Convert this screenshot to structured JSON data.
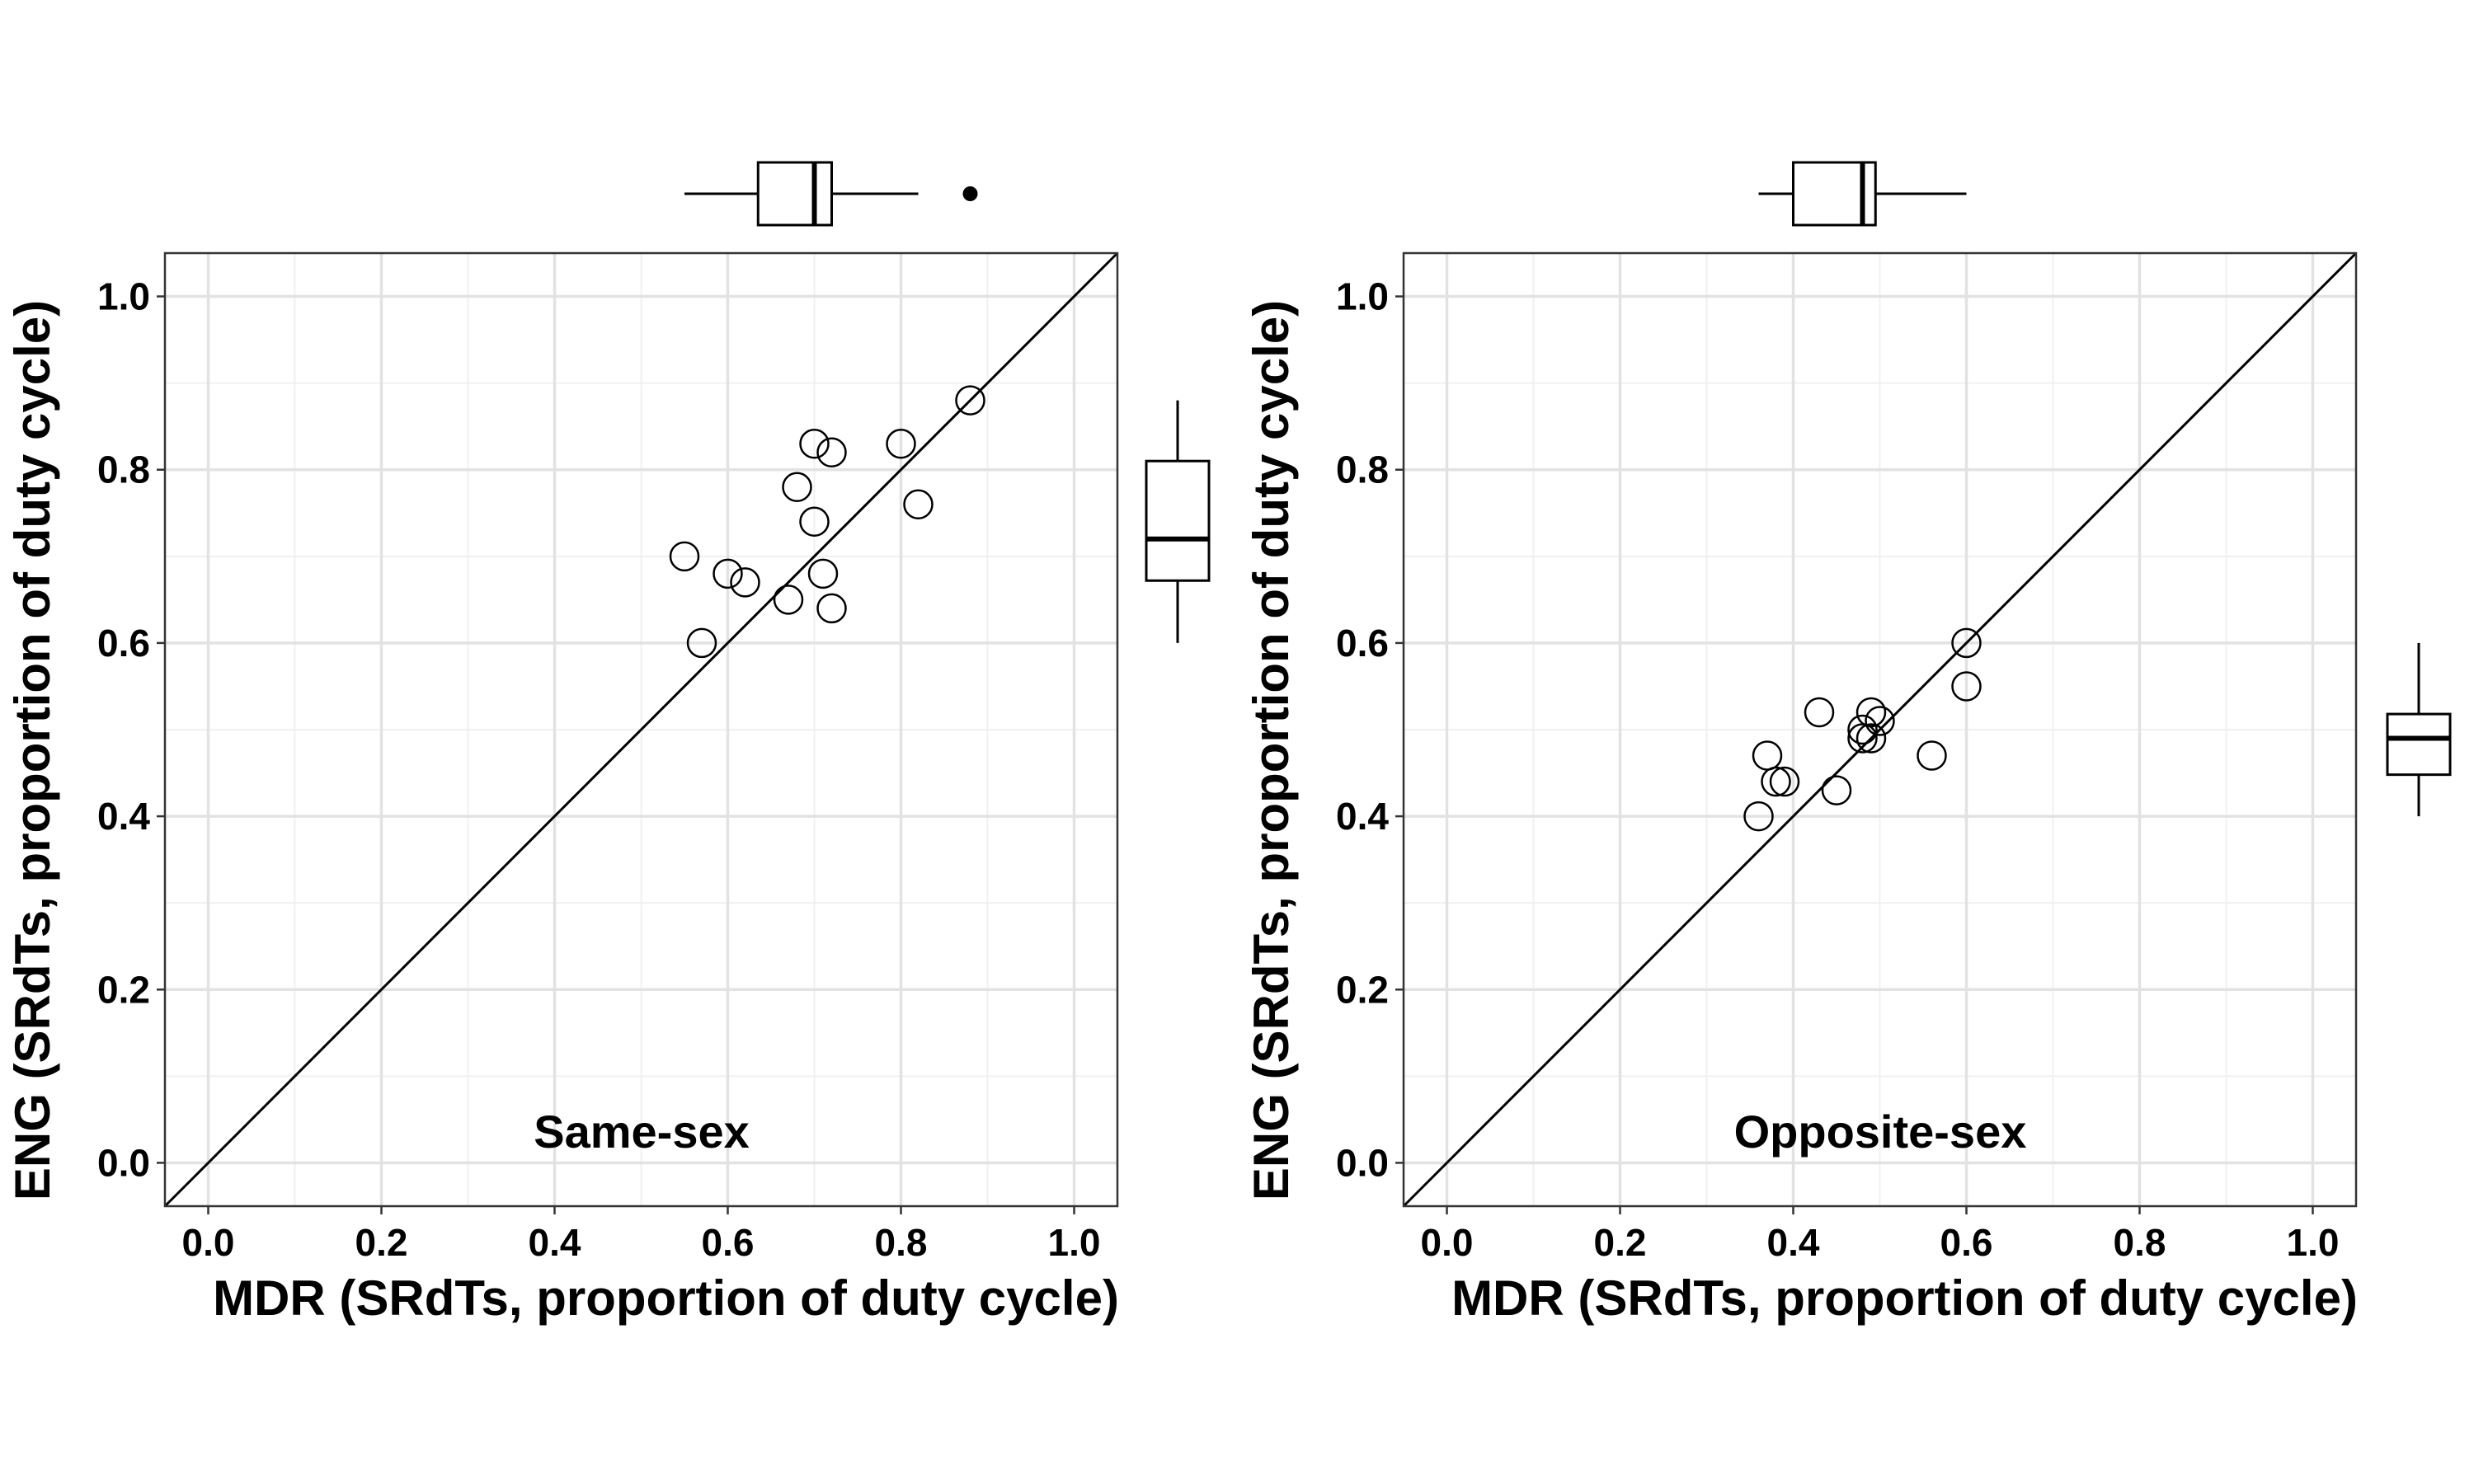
{
  "chart_data": [
    {
      "type": "scatter",
      "annotation": "Same-sex",
      "xlabel": "MDR (SRdTs, proportion of duty cycle)",
      "ylabel": "ENG (SRdTs, proportion of duty cycle)",
      "xlim": [
        -0.05,
        1.05
      ],
      "ylim": [
        -0.05,
        1.05
      ],
      "xticks": [
        "0.0",
        "0.2",
        "0.4",
        "0.6",
        "0.8",
        "1.0"
      ],
      "yticks": [
        "0.0",
        "0.2",
        "0.4",
        "0.6",
        "0.8",
        "1.0"
      ],
      "grid": true,
      "reference_line": "y = x",
      "points": [
        {
          "x": 0.55,
          "y": 0.7
        },
        {
          "x": 0.57,
          "y": 0.6
        },
        {
          "x": 0.6,
          "y": 0.68
        },
        {
          "x": 0.62,
          "y": 0.67
        },
        {
          "x": 0.67,
          "y": 0.65
        },
        {
          "x": 0.68,
          "y": 0.78
        },
        {
          "x": 0.7,
          "y": 0.83
        },
        {
          "x": 0.7,
          "y": 0.74
        },
        {
          "x": 0.71,
          "y": 0.68
        },
        {
          "x": 0.72,
          "y": 0.82
        },
        {
          "x": 0.72,
          "y": 0.64
        },
        {
          "x": 0.8,
          "y": 0.83
        },
        {
          "x": 0.82,
          "y": 0.76
        },
        {
          "x": 0.88,
          "y": 0.88
        }
      ],
      "x_boxplot": {
        "whisker_low": 0.55,
        "q1": 0.635,
        "median": 0.7,
        "q3": 0.72,
        "whisker_high": 0.82,
        "outliers": [
          0.88
        ]
      },
      "y_boxplot": {
        "whisker_low": 0.6,
        "q1": 0.672,
        "median": 0.72,
        "q3": 0.81,
        "whisker_high": 0.88,
        "outliers": []
      }
    },
    {
      "type": "scatter",
      "annotation": "Opposite-sex",
      "xlabel": "MDR (SRdTs, proportion of duty cycle)",
      "ylabel": "ENG (SRdTs, proportion of duty cycle)",
      "xlim": [
        -0.05,
        1.05
      ],
      "ylim": [
        -0.05,
        1.05
      ],
      "xticks": [
        "0.0",
        "0.2",
        "0.4",
        "0.6",
        "0.8",
        "1.0"
      ],
      "yticks": [
        "0.0",
        "0.2",
        "0.4",
        "0.6",
        "0.8",
        "1.0"
      ],
      "grid": true,
      "reference_line": "y = x",
      "points": [
        {
          "x": 0.36,
          "y": 0.4
        },
        {
          "x": 0.37,
          "y": 0.47
        },
        {
          "x": 0.38,
          "y": 0.44
        },
        {
          "x": 0.39,
          "y": 0.44
        },
        {
          "x": 0.43,
          "y": 0.52
        },
        {
          "x": 0.45,
          "y": 0.43
        },
        {
          "x": 0.48,
          "y": 0.5
        },
        {
          "x": 0.48,
          "y": 0.49
        },
        {
          "x": 0.49,
          "y": 0.52
        },
        {
          "x": 0.49,
          "y": 0.49
        },
        {
          "x": 0.5,
          "y": 0.51
        },
        {
          "x": 0.56,
          "y": 0.47
        },
        {
          "x": 0.6,
          "y": 0.6
        },
        {
          "x": 0.6,
          "y": 0.55
        }
      ],
      "x_boxplot": {
        "whisker_low": 0.36,
        "q1": 0.4,
        "median": 0.48,
        "q3": 0.495,
        "whisker_high": 0.6,
        "outliers": []
      },
      "y_boxplot": {
        "whisker_low": 0.4,
        "q1": 0.448,
        "median": 0.49,
        "q3": 0.518,
        "whisker_high": 0.6,
        "outliers": []
      }
    }
  ]
}
